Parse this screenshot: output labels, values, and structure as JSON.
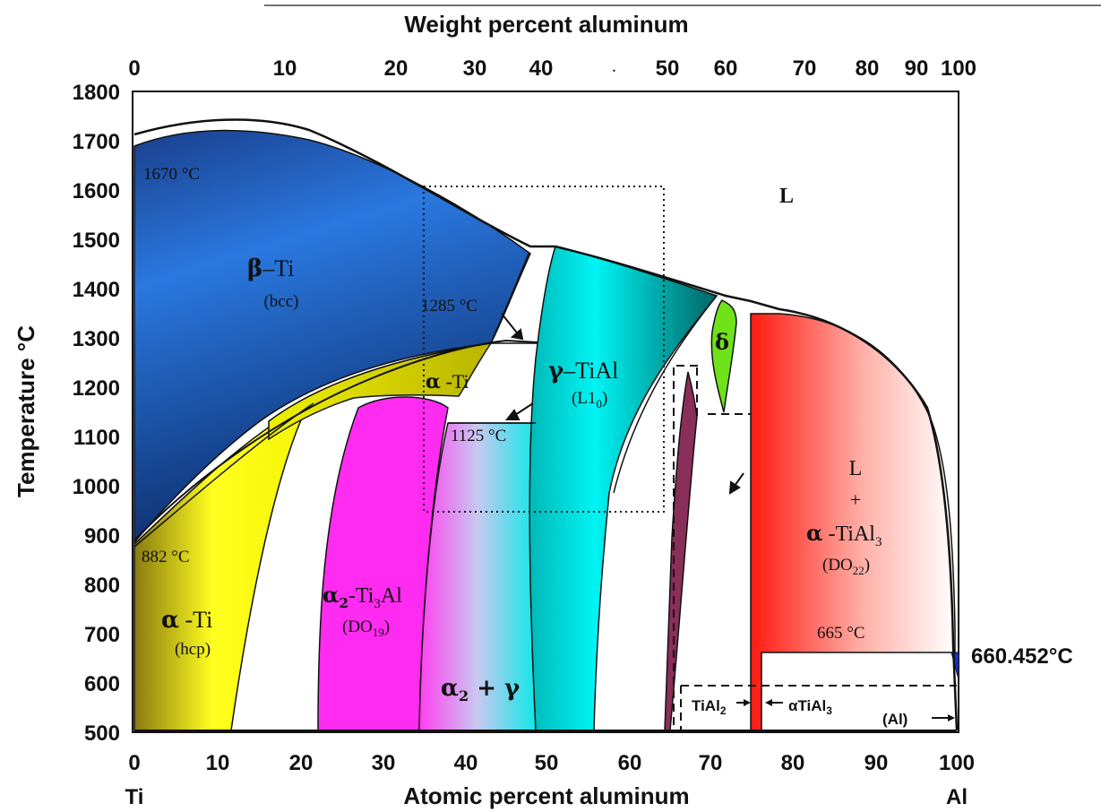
{
  "top_axis": {
    "title": "Weight percent aluminum",
    "ticks": [
      "0",
      "10",
      "20",
      "30",
      "40",
      "50",
      "60",
      "70",
      "80",
      "90",
      "100"
    ]
  },
  "bottom_axis": {
    "title": "Atomic percent aluminum",
    "ticks": [
      "0",
      "10",
      "20",
      "30",
      "40",
      "50",
      "60",
      "70",
      "80",
      "90",
      "100"
    ],
    "left_element": "Ti",
    "right_element": "Al"
  },
  "left_axis": {
    "title": "Temperature °C",
    "ticks": [
      "1800",
      "1700",
      "1600",
      "1500",
      "1400",
      "1300",
      "1200",
      "1100",
      "1000",
      "900",
      "800",
      "700",
      "600",
      "500"
    ]
  },
  "temperatures": {
    "t1670": "1670 °C",
    "t1285": "1285 °C",
    "t1125": "1125 °C",
    "t882": "882 °C",
    "t665": "665 °C",
    "t660": "660.452°C"
  },
  "phases": {
    "liquid": "L",
    "beta_sym": "β",
    "beta_name": "–Ti",
    "beta_struct": "(bcc)",
    "alpha_sym": "α",
    "alpha_name": " -Ti",
    "alpha_struct": "(hcp)",
    "alpha_upper_sym": "α",
    "alpha_upper_name": " -Ti",
    "alpha2_sym": "α",
    "alpha2_sub": "2",
    "alpha2_name": "-Ti",
    "alpha2_sub3": "3",
    "alpha2_al": "Al",
    "alpha2_struct": "(DO",
    "alpha2_struct_sub": "19",
    "alpha2_struct_end": ")",
    "mix_a": "α",
    "mix_sub": "2",
    "mix_plus": " + γ",
    "gamma_sym": "γ",
    "gamma_name": "–TiAl",
    "gamma_struct": "(L1",
    "gamma_struct_sub": "0",
    "gamma_struct_end": ")",
    "delta": "δ",
    "l_alpha_l": "L",
    "l_alpha_plus": "+",
    "l_alpha_sym": "α",
    "l_alpha_name": " -TiAl",
    "l_alpha_sub": "3",
    "l_alpha_struct": "(DO",
    "l_alpha_struct_sub": "22",
    "l_alpha_struct_end": ")",
    "tial2": "TiAl",
    "tial2_sub": "2",
    "atial3": "αTiAl",
    "atial3_sub": "3",
    "al_phase": "(Al)"
  },
  "colors": {
    "beta": "#1f5fc8",
    "alpha": "#f2f200",
    "alpha2": "#ff2bf0",
    "gamma": "#00e8e8",
    "delta": "#6fe21a",
    "tial2": "#8a2f5a",
    "l_alpha": "#ff2a1a",
    "al": "#1030e0"
  }
}
